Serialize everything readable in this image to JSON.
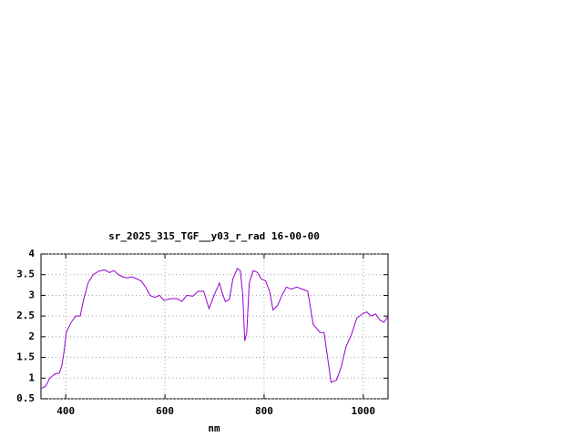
{
  "chart_data": {
    "type": "line",
    "title": "sr_2025_315_TGF__y03_r_rad 16-00-00",
    "x_label": "nm",
    "x": [
      350,
      359,
      368,
      378,
      387,
      392,
      396,
      401,
      411,
      420,
      429,
      436,
      445,
      455,
      466,
      478,
      488,
      497,
      506,
      515,
      524,
      533,
      543,
      552,
      561,
      570,
      579,
      589,
      598,
      612,
      625,
      634,
      644,
      656,
      667,
      678,
      689,
      699,
      710,
      717,
      722,
      730,
      737,
      746,
      752,
      757,
      761,
      765,
      770,
      778,
      787,
      794,
      803,
      811,
      818,
      827,
      836,
      845,
      855,
      866,
      877,
      888,
      899,
      913,
      921,
      928,
      935,
      946,
      955,
      965,
      976,
      987,
      998,
      1007,
      1016,
      1025,
      1034,
      1042,
      1050
    ],
    "values": [
      0.75,
      0.8,
      1.0,
      1.1,
      1.12,
      1.3,
      1.6,
      2.1,
      2.35,
      2.5,
      2.5,
      2.9,
      3.3,
      3.5,
      3.58,
      3.62,
      3.55,
      3.6,
      3.5,
      3.45,
      3.42,
      3.45,
      3.4,
      3.35,
      3.2,
      3.0,
      2.95,
      3.0,
      2.88,
      2.92,
      2.92,
      2.85,
      3.0,
      2.98,
      3.1,
      3.1,
      2.68,
      3.0,
      3.3,
      3.0,
      2.85,
      2.9,
      3.4,
      3.65,
      3.6,
      3.0,
      1.9,
      2.1,
      3.3,
      3.6,
      3.55,
      3.4,
      3.35,
      3.1,
      2.65,
      2.75,
      3.0,
      3.2,
      3.15,
      3.2,
      3.15,
      3.1,
      2.3,
      2.1,
      2.1,
      1.5,
      0.9,
      0.95,
      1.25,
      1.75,
      2.05,
      2.45,
      2.55,
      2.6,
      2.5,
      2.55,
      2.4,
      2.35,
      2.5
    ],
    "color": "#9400d3",
    "xlim": [
      350,
      1050
    ],
    "xticks": [
      400,
      600,
      800,
      1000
    ],
    "ylim": [
      0.5,
      4
    ],
    "yticks": [
      0.5,
      1,
      1.5,
      2,
      2.5,
      3,
      3.5,
      4
    ],
    "grid": true
  }
}
